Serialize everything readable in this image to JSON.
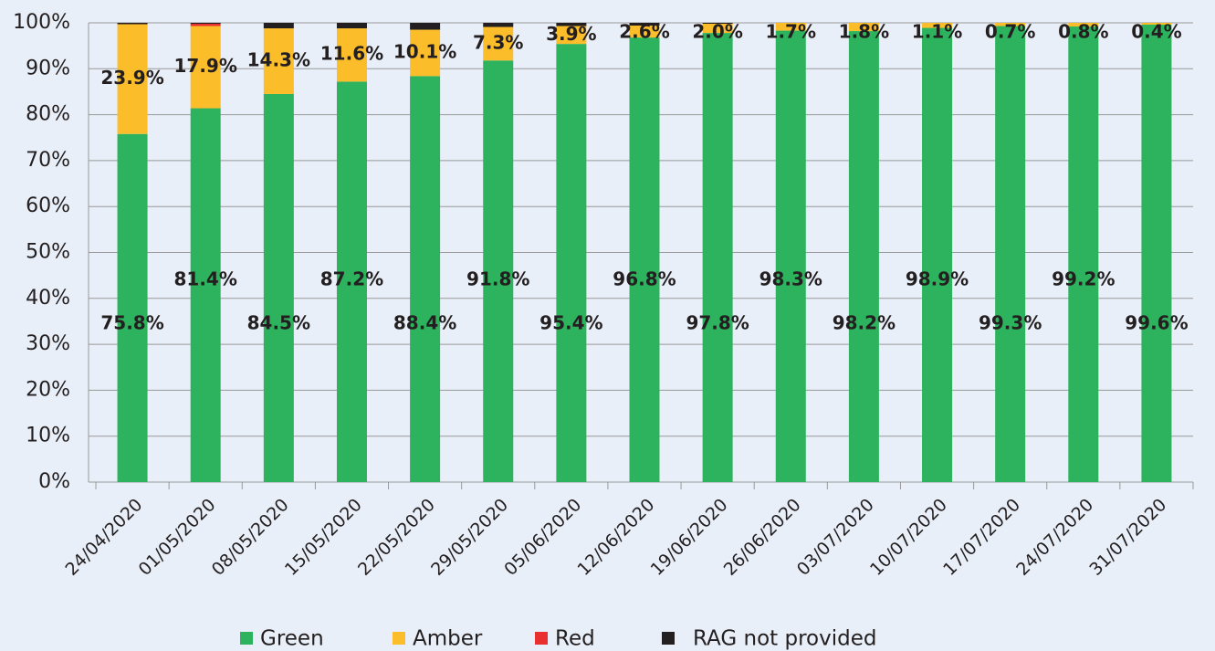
{
  "chart_data": {
    "type": "stacked-bar",
    "categories": [
      "24/04/2020",
      "01/05/2020",
      "08/05/2020",
      "15/05/2020",
      "22/05/2020",
      "29/05/2020",
      "05/06/2020",
      "12/06/2020",
      "19/06/2020",
      "26/06/2020",
      "03/07/2020",
      "10/07/2020",
      "17/07/2020",
      "24/07/2020",
      "31/07/2020"
    ],
    "series": [
      {
        "name": "Green",
        "color": "#2db35d",
        "values": [
          75.8,
          81.4,
          84.5,
          87.2,
          88.4,
          91.8,
          95.4,
          96.8,
          97.8,
          98.3,
          98.2,
          98.9,
          99.3,
          99.2,
          99.6
        ],
        "value_labels": [
          "75.8%",
          "81.4%",
          "84.5%",
          "87.2%",
          "88.4%",
          "91.8%",
          "95.4%",
          "96.8%",
          "97.8%",
          "98.3%",
          "98.2%",
          "98.9%",
          "99.3%",
          "99.2%",
          "99.6%"
        ]
      },
      {
        "name": "Amber",
        "color": "#fbbd2a",
        "values": [
          23.9,
          17.9,
          14.3,
          11.6,
          10.1,
          7.3,
          3.9,
          2.6,
          2.0,
          1.7,
          1.8,
          1.1,
          0.7,
          0.8,
          0.4
        ],
        "value_labels": [
          "23.9%",
          "17.9%",
          "14.3%",
          "11.6%",
          "10.1%",
          "7.3%",
          "3.9%",
          "2.6%",
          "2.0%",
          "1.7%",
          "1.8%",
          "1.1%",
          "0.7%",
          "0.8%",
          "0.4%"
        ]
      },
      {
        "name": "Red",
        "color": "#e8302f",
        "values": [
          0,
          0.5,
          0,
          0,
          0,
          0,
          0,
          0,
          0,
          0,
          0,
          0,
          0,
          0,
          0
        ]
      },
      {
        "name": "RAG not provided",
        "color": "#231f20",
        "values": [
          0.3,
          0.2,
          1.2,
          1.2,
          1.5,
          0.9,
          0.7,
          0.6,
          0.2,
          0,
          0,
          0,
          0,
          0,
          0
        ]
      }
    ],
    "ylim": [
      0,
      100
    ],
    "yticks": [
      {
        "value": 0,
        "label": "0%"
      },
      {
        "value": 10,
        "label": "10%"
      },
      {
        "value": 20,
        "label": "20%"
      },
      {
        "value": 30,
        "label": "30%"
      },
      {
        "value": 40,
        "label": "40%"
      },
      {
        "value": 50,
        "label": "50%"
      },
      {
        "value": 60,
        "label": "60%"
      },
      {
        "value": 70,
        "label": "70%"
      },
      {
        "value": 80,
        "label": "80%"
      },
      {
        "value": 90,
        "label": "90%"
      },
      {
        "value": 100,
        "label": "100%"
      }
    ],
    "grid": true
  }
}
